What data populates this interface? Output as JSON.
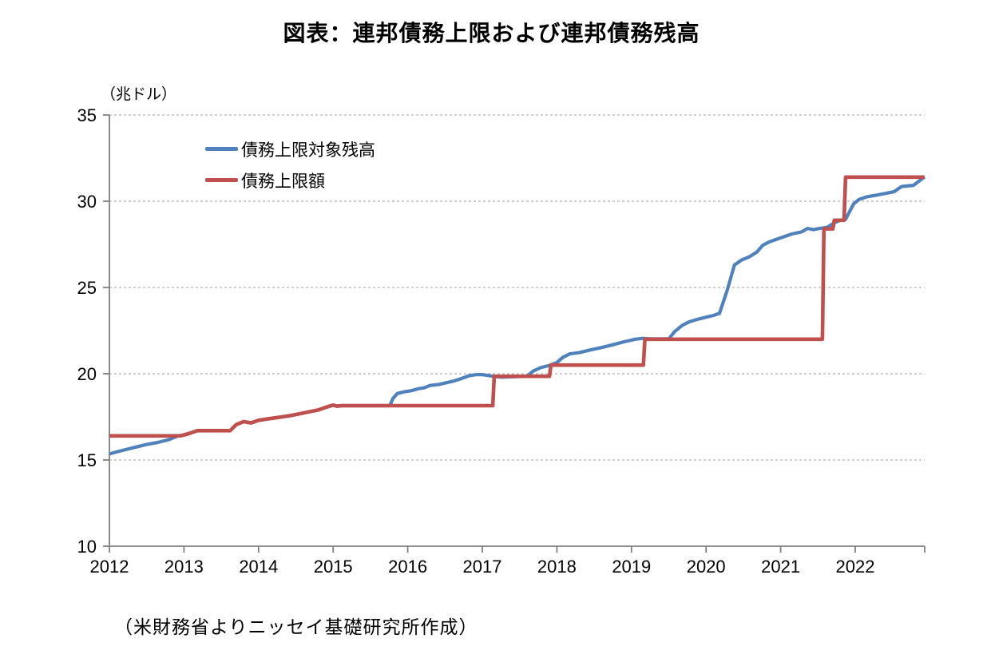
{
  "page": {
    "source_note": "（米財務省よりニッセイ基礎研究所作成）"
  },
  "chart_data": {
    "type": "line",
    "title": "図表：連邦債務上限および連邦債務残高",
    "unit_label": "（兆ドル）",
    "xlabel": "",
    "ylabel": "兆ドル",
    "ylim": [
      10,
      35
    ],
    "xlim": [
      2012,
      2022.93
    ],
    "y_ticks": [
      10,
      15,
      20,
      25,
      30,
      35
    ],
    "x_ticks": [
      2012,
      2013,
      2014,
      2015,
      2016,
      2017,
      2018,
      2019,
      2020,
      2021,
      2022
    ],
    "grid": "horizontal-dashed",
    "legend_position": "top-left-inside",
    "colors": {
      "blue": "#4F81BD",
      "red": "#C0504D",
      "axis": "#808080",
      "grid": "#9e9e9e"
    },
    "series": [
      {
        "name": "債務上限対象残高",
        "color_key": "blue",
        "stroke_width": 4.2,
        "points": [
          [
            2012.0,
            15.35
          ],
          [
            2012.17,
            15.55
          ],
          [
            2012.33,
            15.72
          ],
          [
            2012.5,
            15.9
          ],
          [
            2012.65,
            16.02
          ],
          [
            2012.8,
            16.18
          ],
          [
            2012.92,
            16.4
          ],
          [
            2013.0,
            16.45
          ],
          [
            2013.08,
            16.55
          ],
          [
            2013.18,
            16.7
          ],
          [
            2013.62,
            16.7
          ],
          [
            2013.7,
            17.05
          ],
          [
            2013.8,
            17.22
          ],
          [
            2013.9,
            17.15
          ],
          [
            2014.0,
            17.3
          ],
          [
            2014.15,
            17.4
          ],
          [
            2014.4,
            17.55
          ],
          [
            2014.6,
            17.72
          ],
          [
            2014.8,
            17.9
          ],
          [
            2014.92,
            18.08
          ],
          [
            2015.0,
            18.18
          ],
          [
            2015.05,
            18.12
          ],
          [
            2015.12,
            18.15
          ],
          [
            2015.76,
            18.15
          ],
          [
            2015.8,
            18.55
          ],
          [
            2015.86,
            18.85
          ],
          [
            2015.95,
            18.95
          ],
          [
            2016.05,
            19.02
          ],
          [
            2016.16,
            19.15
          ],
          [
            2016.22,
            19.18
          ],
          [
            2016.3,
            19.32
          ],
          [
            2016.42,
            19.38
          ],
          [
            2016.52,
            19.48
          ],
          [
            2016.62,
            19.58
          ],
          [
            2016.72,
            19.72
          ],
          [
            2016.82,
            19.88
          ],
          [
            2016.92,
            19.95
          ],
          [
            2017.0,
            19.95
          ],
          [
            2017.1,
            19.88
          ],
          [
            2017.25,
            19.8
          ],
          [
            2017.45,
            19.83
          ],
          [
            2017.6,
            19.85
          ],
          [
            2017.68,
            20.15
          ],
          [
            2017.78,
            20.35
          ],
          [
            2017.9,
            20.48
          ],
          [
            2018.0,
            20.65
          ],
          [
            2018.08,
            20.95
          ],
          [
            2018.17,
            21.15
          ],
          [
            2018.3,
            21.22
          ],
          [
            2018.45,
            21.38
          ],
          [
            2018.6,
            21.52
          ],
          [
            2018.75,
            21.68
          ],
          [
            2018.9,
            21.85
          ],
          [
            2019.05,
            22.0
          ],
          [
            2019.15,
            22.05
          ],
          [
            2019.25,
            22.02
          ],
          [
            2019.5,
            22.02
          ],
          [
            2019.58,
            22.45
          ],
          [
            2019.68,
            22.8
          ],
          [
            2019.78,
            23.02
          ],
          [
            2019.88,
            23.15
          ],
          [
            2020.0,
            23.28
          ],
          [
            2020.1,
            23.38
          ],
          [
            2020.18,
            23.5
          ],
          [
            2020.28,
            24.8
          ],
          [
            2020.38,
            26.3
          ],
          [
            2020.48,
            26.6
          ],
          [
            2020.58,
            26.78
          ],
          [
            2020.68,
            27.05
          ],
          [
            2020.76,
            27.45
          ],
          [
            2020.85,
            27.65
          ],
          [
            2020.95,
            27.8
          ],
          [
            2021.05,
            27.95
          ],
          [
            2021.15,
            28.1
          ],
          [
            2021.28,
            28.22
          ],
          [
            2021.36,
            28.42
          ],
          [
            2021.44,
            28.35
          ],
          [
            2021.52,
            28.42
          ],
          [
            2021.62,
            28.48
          ],
          [
            2021.72,
            28.75
          ],
          [
            2021.8,
            28.9
          ],
          [
            2021.87,
            28.95
          ],
          [
            2021.93,
            29.45
          ],
          [
            2021.98,
            29.85
          ],
          [
            2022.05,
            30.1
          ],
          [
            2022.15,
            30.25
          ],
          [
            2022.28,
            30.35
          ],
          [
            2022.4,
            30.45
          ],
          [
            2022.52,
            30.55
          ],
          [
            2022.62,
            30.85
          ],
          [
            2022.72,
            30.9
          ],
          [
            2022.78,
            30.92
          ],
          [
            2022.85,
            31.15
          ],
          [
            2022.9,
            31.32
          ],
          [
            2022.93,
            31.4
          ]
        ]
      },
      {
        "name": "債務上限額",
        "color_key": "red",
        "stroke_width": 4.6,
        "points": [
          [
            2012.0,
            16.4
          ],
          [
            2012.95,
            16.4
          ],
          [
            2013.0,
            16.45
          ],
          [
            2013.08,
            16.55
          ],
          [
            2013.18,
            16.7
          ],
          [
            2013.62,
            16.7
          ],
          [
            2013.7,
            17.05
          ],
          [
            2013.8,
            17.22
          ],
          [
            2013.9,
            17.15
          ],
          [
            2014.0,
            17.3
          ],
          [
            2014.15,
            17.4
          ],
          [
            2014.4,
            17.55
          ],
          [
            2014.6,
            17.72
          ],
          [
            2014.8,
            17.9
          ],
          [
            2014.92,
            18.08
          ],
          [
            2015.0,
            18.18
          ],
          [
            2015.05,
            18.12
          ],
          [
            2015.12,
            18.15
          ],
          [
            2017.14,
            18.15
          ],
          [
            2017.16,
            19.85
          ],
          [
            2017.9,
            19.85
          ],
          [
            2017.92,
            20.5
          ],
          [
            2019.16,
            20.5
          ],
          [
            2019.18,
            22.0
          ],
          [
            2021.56,
            22.0
          ],
          [
            2021.58,
            28.4
          ],
          [
            2021.7,
            28.4
          ],
          [
            2021.72,
            28.9
          ],
          [
            2021.85,
            28.9
          ],
          [
            2021.87,
            31.4
          ],
          [
            2022.93,
            31.4
          ]
        ]
      }
    ]
  }
}
